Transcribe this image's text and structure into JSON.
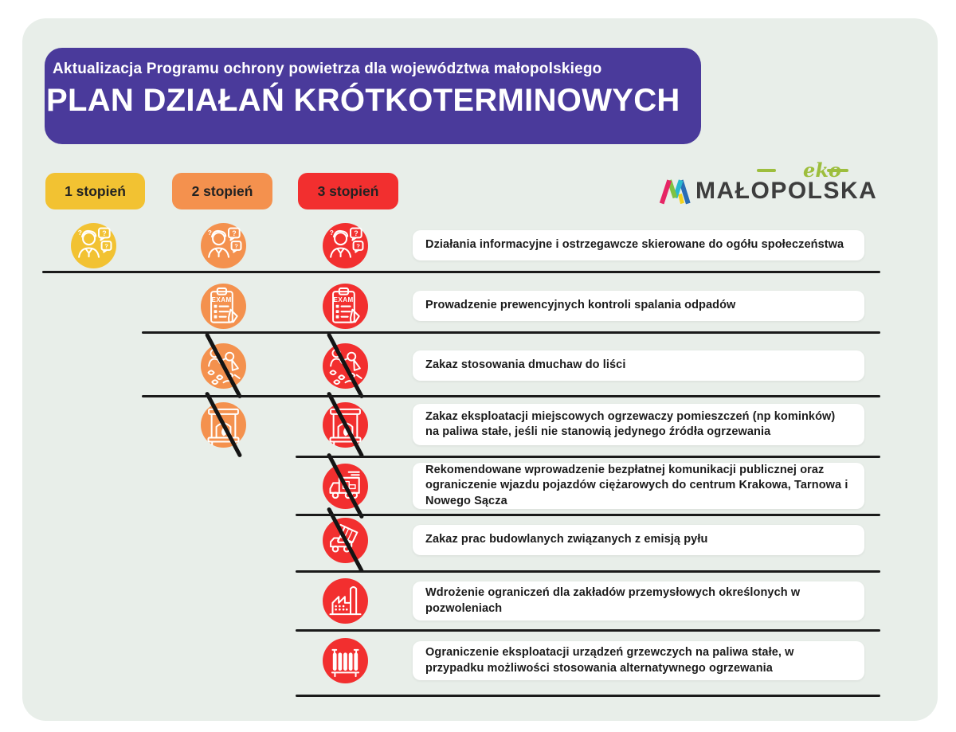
{
  "header": {
    "subtitle": "Aktualizacja Programu ochrony powietrza dla województwa małopolskiego",
    "title": "PLAN DZIAŁAŃ KRÓTKOTERMINOWYCH"
  },
  "legend": [
    {
      "label": "1 stopień",
      "level": 1
    },
    {
      "label": "2 stopień",
      "level": 2
    },
    {
      "label": "3 stopień",
      "level": 3
    }
  ],
  "colors": {
    "level1": "#f2c232",
    "level2": "#f4914e",
    "level3": "#f22f2f",
    "banner": "#4a3a9b",
    "board": "#e8eee9",
    "line": "#1a1a1a",
    "logo_green": "#9dbe3d"
  },
  "logo": {
    "eko": "eko",
    "name": "MAŁOPOLSKA"
  },
  "icons": {
    "exam_label": "EXAM",
    "question_mark": "?"
  },
  "rows": [
    {
      "icon": "announcement-person-icon",
      "levels": [
        1,
        2,
        3
      ],
      "banned": false,
      "text": "Działania informacyjne i ostrzegawcze skierowane do ogółu społeczeństwa"
    },
    {
      "icon": "inspection-clipboard-icon",
      "levels": [
        2,
        3
      ],
      "banned": false,
      "text": "Prowadzenie prewencyjnych kontroli spalania odpadów"
    },
    {
      "icon": "leaf-blower-icon",
      "levels": [
        2,
        3
      ],
      "banned": true,
      "text": "Zakaz stosowania dmuchaw do liści"
    },
    {
      "icon": "fireplace-icon",
      "levels": [
        2,
        3
      ],
      "banned": true,
      "text": "Zakaz eksploatacji miejscowych ogrzewaczy pomieszczeń (np kominków) na paliwa stałe, jeśli nie stanowią jedynego źródła ogrzewania"
    },
    {
      "icon": "truck-icon",
      "levels": [
        3
      ],
      "banned": true,
      "text": "Rekomendowane wprowadzenie bezpłatnej komunikacji publicznej oraz ograniczenie wjazdu pojazdów ciężarowych do centrum Krakowa, Tarnowa i Nowego Sącza"
    },
    {
      "icon": "construction-truck-icon",
      "levels": [
        3
      ],
      "banned": true,
      "text": "Zakaz prac budowlanych związanych z emisją pyłu"
    },
    {
      "icon": "factory-icon",
      "levels": [
        3
      ],
      "banned": false,
      "text": "Wdrożenie ograniczeń dla zakładów przemysłowych określonych w pozwoleniach"
    },
    {
      "icon": "radiator-icon",
      "levels": [
        3
      ],
      "banned": false,
      "text": "Ograniczenie eksploatacji urządzeń grzewczych na paliwa stałe, w przypadku możliwości stosowania alternatywnego ogrzewania"
    }
  ]
}
